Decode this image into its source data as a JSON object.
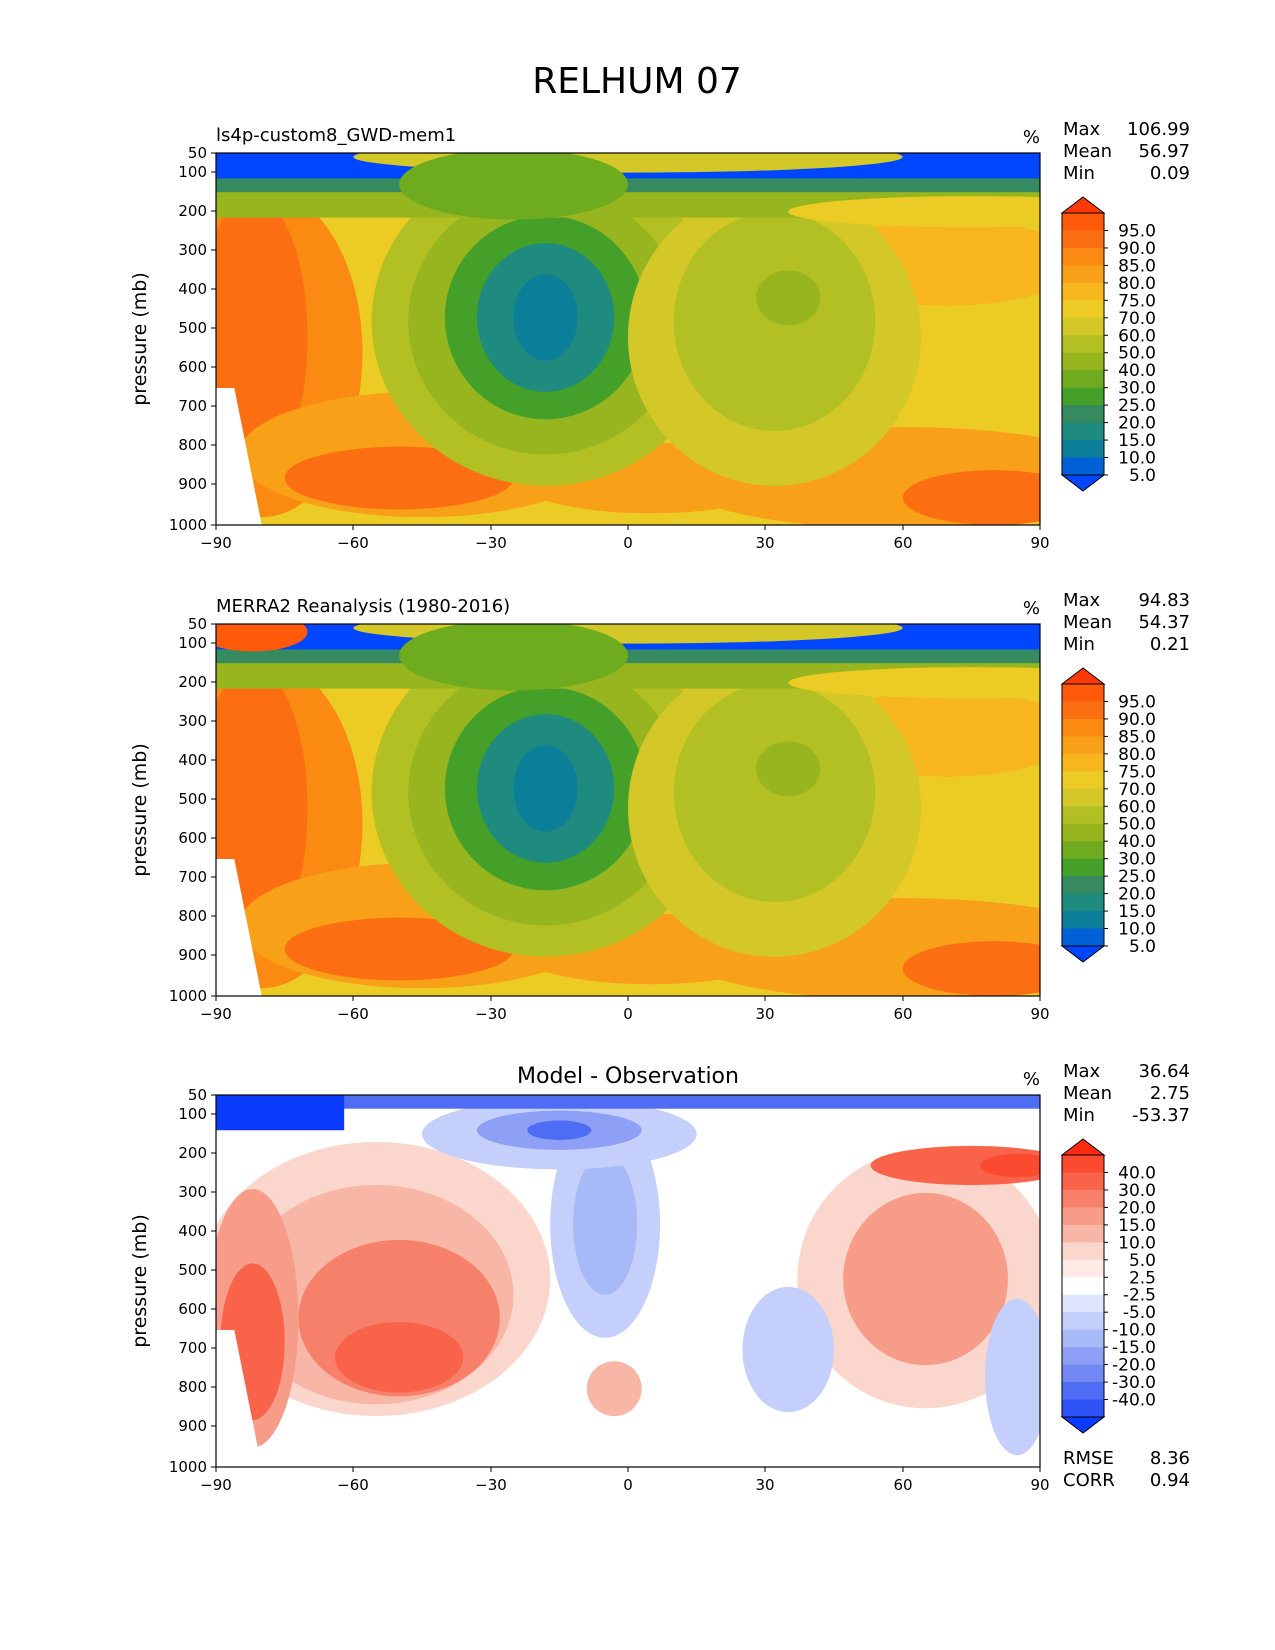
{
  "figure_title": "RELHUM 07",
  "chart_data": [
    {
      "type": "heatmap",
      "title": "ls4p-custom8_GWD-mem1",
      "units": "%",
      "ylabel": "pressure (mb)",
      "xlabel": "",
      "x_ticks": [
        "−90",
        "−60",
        "−30",
        "0",
        "30",
        "60",
        "90"
      ],
      "y_ticks": [
        "50",
        "100",
        "200",
        "300",
        "400",
        "500",
        "600",
        "700",
        "800",
        "900",
        "1000"
      ],
      "xlim": [
        -90,
        90
      ],
      "ylim": [
        1000,
        50
      ],
      "stats": [
        {
          "label": "Max",
          "value": "106.99"
        },
        {
          "label": "Mean",
          "value": "56.97"
        },
        {
          "label": "Min",
          "value": "0.09"
        }
      ],
      "colorbar_ticks": [
        "95.0",
        "90.0",
        "85.0",
        "80.0",
        "75.0",
        "70.0",
        "60.0",
        "50.0",
        "40.0",
        "30.0",
        "25.0",
        "20.0",
        "15.0",
        "10.0",
        "5.0"
      ],
      "colorbar_colors": [
        "#ff3a0a",
        "#ff5a0a",
        "#fb6f12",
        "#fa8a12",
        "#f8a018",
        "#f7b51e",
        "#eccb25",
        "#d3c827",
        "#b3c024",
        "#97b51e",
        "#6fab1e",
        "#45a02a",
        "#358a5f",
        "#1f8a7e",
        "#0b7e9a",
        "#0060d5",
        "#0046ff"
      ]
    },
    {
      "type": "heatmap",
      "title": "MERRA2 Reanalysis (1980-2016)",
      "units": "%",
      "ylabel": "pressure (mb)",
      "xlabel": "",
      "x_ticks": [
        "−90",
        "−60",
        "−30",
        "0",
        "30",
        "60",
        "90"
      ],
      "y_ticks": [
        "50",
        "100",
        "200",
        "300",
        "400",
        "500",
        "600",
        "700",
        "800",
        "900",
        "1000"
      ],
      "xlim": [
        -90,
        90
      ],
      "ylim": [
        1000,
        50
      ],
      "stats": [
        {
          "label": "Max",
          "value": "94.83"
        },
        {
          "label": "Mean",
          "value": "54.37"
        },
        {
          "label": "Min",
          "value": "0.21"
        }
      ],
      "colorbar_ticks": [
        "95.0",
        "90.0",
        "85.0",
        "80.0",
        "75.0",
        "70.0",
        "60.0",
        "50.0",
        "40.0",
        "30.0",
        "25.0",
        "20.0",
        "15.0",
        "10.0",
        "5.0"
      ],
      "colorbar_colors": [
        "#ff3a0a",
        "#ff5a0a",
        "#fb6f12",
        "#fa8a12",
        "#f8a018",
        "#f7b51e",
        "#eccb25",
        "#d3c827",
        "#b3c024",
        "#97b51e",
        "#6fab1e",
        "#45a02a",
        "#358a5f",
        "#1f8a7e",
        "#0b7e9a",
        "#0060d5",
        "#0046ff"
      ]
    },
    {
      "type": "heatmap",
      "title": "Model - Observation",
      "units": "%",
      "ylabel": "pressure (mb)",
      "xlabel": "",
      "x_ticks": [
        "−90",
        "−60",
        "−30",
        "0",
        "30",
        "60",
        "90"
      ],
      "y_ticks": [
        "50",
        "100",
        "200",
        "300",
        "400",
        "500",
        "600",
        "700",
        "800",
        "900",
        "1000"
      ],
      "xlim": [
        -90,
        90
      ],
      "ylim": [
        1000,
        50
      ],
      "stats": [
        {
          "label": "Max",
          "value": "36.64"
        },
        {
          "label": "Mean",
          "value": "2.75"
        },
        {
          "label": "Min",
          "value": "-53.37"
        }
      ],
      "bottom_stats": [
        {
          "label": "RMSE",
          "value": "8.36"
        },
        {
          "label": "CORR",
          "value": "0.94"
        }
      ],
      "colorbar_ticks": [
        "40.0",
        "30.0",
        "20.0",
        "15.0",
        "10.0",
        "5.0",
        "2.5",
        "-2.5",
        "-5.0",
        "-10.0",
        "-15.0",
        "-20.0",
        "-30.0",
        "-40.0"
      ],
      "colorbar_colors": [
        "#ff2a12",
        "#fb4a30",
        "#f8634a",
        "#f7806a",
        "#f69c88",
        "#f7b6a6",
        "#fbd6cc",
        "#fdeae4",
        "#ffffff",
        "#dee6ff",
        "#c4d0fb",
        "#a8b9f7",
        "#8ea0f5",
        "#7289f3",
        "#4f6cf4",
        "#2c52f8",
        "#0a3bff"
      ]
    }
  ]
}
